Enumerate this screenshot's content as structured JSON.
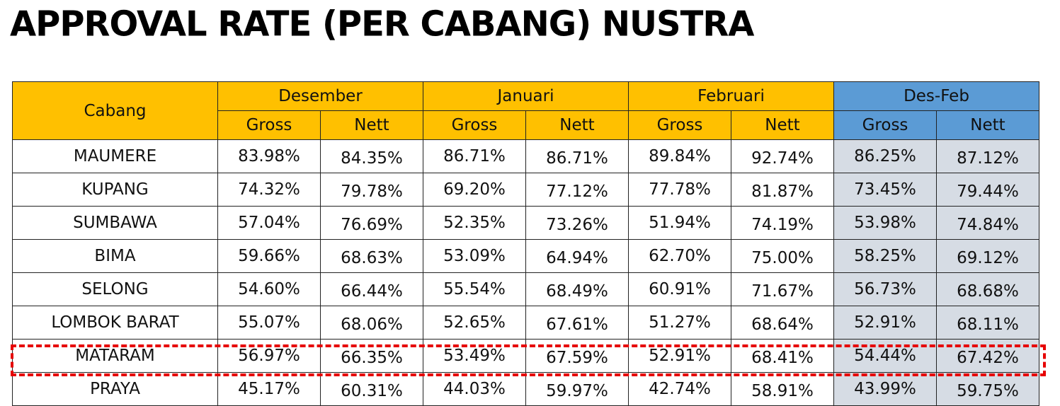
{
  "title": "APPROVAL RATE (PER CABANG) NUSTRA",
  "table": {
    "branch_header": "Cabang",
    "periods": [
      "Desember",
      "Januari",
      "Februari",
      "Des-Feb"
    ],
    "subheaders": [
      "Gross",
      "Nett"
    ],
    "rows": [
      {
        "cabang": "MAUMERE",
        "values": [
          "83.98%",
          "84.35%",
          "86.71%",
          "86.71%",
          "89.84%",
          "92.74%",
          "86.25%",
          "87.12%"
        ]
      },
      {
        "cabang": "KUPANG",
        "values": [
          "74.32%",
          "79.78%",
          "69.20%",
          "77.12%",
          "77.78%",
          "81.87%",
          "73.45%",
          "79.44%"
        ]
      },
      {
        "cabang": "SUMBAWA",
        "values": [
          "57.04%",
          "76.69%",
          "52.35%",
          "73.26%",
          "51.94%",
          "74.19%",
          "53.98%",
          "74.84%"
        ]
      },
      {
        "cabang": "BIMA",
        "values": [
          "59.66%",
          "68.63%",
          "53.09%",
          "64.94%",
          "62.70%",
          "75.00%",
          "58.25%",
          "69.12%"
        ]
      },
      {
        "cabang": "SELONG",
        "values": [
          "54.60%",
          "66.44%",
          "55.54%",
          "68.49%",
          "60.91%",
          "71.67%",
          "56.73%",
          "68.68%"
        ]
      },
      {
        "cabang": "LOMBOK BARAT",
        "values": [
          "55.07%",
          "68.06%",
          "52.65%",
          "67.61%",
          "51.27%",
          "68.64%",
          "52.91%",
          "68.11%"
        ]
      },
      {
        "cabang": "MATARAM",
        "values": [
          "56.97%",
          "66.35%",
          "53.49%",
          "67.59%",
          "52.91%",
          "68.41%",
          "54.44%",
          "67.42%"
        ]
      },
      {
        "cabang": "PRAYA",
        "values": [
          "45.17%",
          "60.31%",
          "44.03%",
          "59.97%",
          "42.74%",
          "58.91%",
          "43.99%",
          "59.75%"
        ]
      }
    ],
    "highlighted_row": "PRAYA"
  },
  "colors": {
    "header_period": "#FFC000",
    "header_total": "#5B9BD5",
    "total_cells": "#D6DCE4",
    "highlight_border": "#E60000"
  }
}
